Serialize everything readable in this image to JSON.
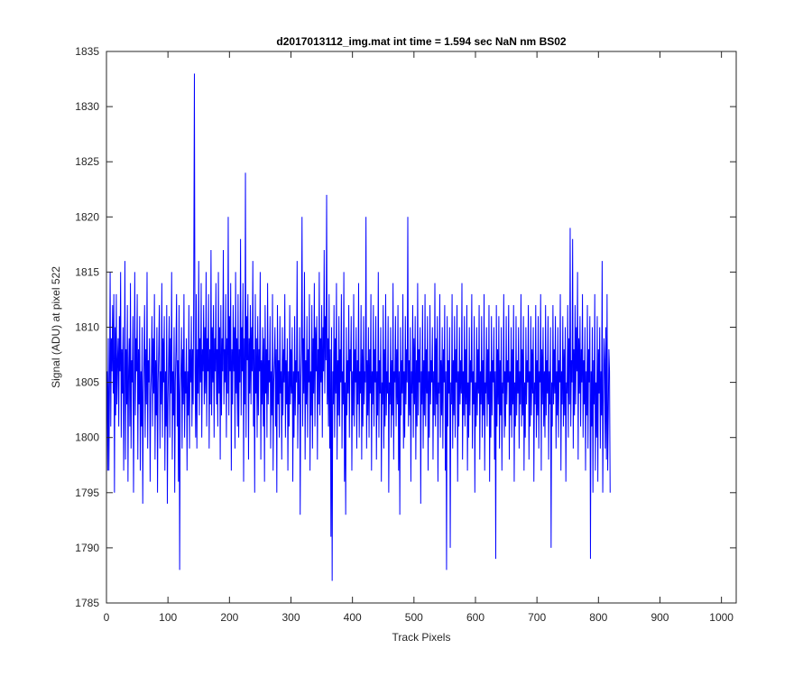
{
  "chart_data": {
    "type": "line",
    "title": "d2017013112_img.mat int time = 1.594 sec  NaN nm BS02",
    "xlabel": "Track Pixels",
    "ylabel": "Signal (ADU) at pixel 522",
    "xlim": [
      0,
      1024
    ],
    "ylim": [
      1785,
      1835
    ],
    "xticks": [
      0,
      100,
      200,
      300,
      400,
      500,
      600,
      700,
      800,
      900,
      1000
    ],
    "yticks": [
      1785,
      1790,
      1795,
      1800,
      1805,
      1810,
      1815,
      1820,
      1825,
      1830,
      1835
    ],
    "grid": false,
    "legend": "none",
    "line_color": "#0000ff",
    "series": [
      {
        "x_start": 1,
        "x_step": 1,
        "values": [
          1806,
          1797,
          1809,
          1797,
          1805,
          1815,
          1801,
          1809,
          1806,
          1812,
          1804,
          1813,
          1795,
          1810,
          1802,
          1813,
          1803,
          1807,
          1809,
          1801,
          1811,
          1806,
          1815,
          1800,
          1808,
          1804,
          1810,
          1797,
          1805,
          1816,
          1798,
          1808,
          1803,
          1812,
          1796,
          1806,
          1809,
          1801,
          1814,
          1799,
          1807,
          1805,
          1811,
          1795,
          1804,
          1815,
          1802,
          1809,
          1806,
          1813,
          1798,
          1808,
          1803,
          1811,
          1797,
          1806,
          1801,
          1810,
          1794,
          1804,
          1807,
          1812,
          1800,
          1808,
          1803,
          1815,
          1799,
          1807,
          1805,
          1809,
          1796,
          1804,
          1806,
          1811,
          1801,
          1809,
          1804,
          1813,
          1798,
          1807,
          1802,
          1810,
          1795,
          1805,
          1808,
          1812,
          1799,
          1806,
          1803,
          1814,
          1800,
          1809,
          1805,
          1811,
          1797,
          1806,
          1801,
          1812,
          1794,
          1803,
          1807,
          1811,
          1800,
          1809,
          1804,
          1815,
          1798,
          1806,
          1802,
          1810,
          1795,
          1805,
          1808,
          1813,
          1801,
          1807,
          1796,
          1812,
          1788,
          1804,
          1806,
          1810,
          1799,
          1808,
          1803,
          1813,
          1800,
          1806,
          1804,
          1809,
          1797,
          1806,
          1802,
          1812,
          1799,
          1808,
          1805,
          1811,
          1801,
          1808,
          1803,
          1815,
          1833,
          1806,
          1800,
          1813,
          1799,
          1808,
          1804,
          1816,
          1802,
          1809,
          1805,
          1814,
          1800,
          1808,
          1806,
          1812,
          1803,
          1810,
          1804,
          1815,
          1801,
          1809,
          1806,
          1813,
          1799,
          1808,
          1803,
          1817,
          1802,
          1810,
          1805,
          1812,
          1800,
          1809,
          1806,
          1814,
          1803,
          1808,
          1801,
          1815,
          1804,
          1810,
          1798,
          1812,
          1802,
          1809,
          1806,
          1817,
          1803,
          1808,
          1805,
          1813,
          1800,
          1809,
          1804,
          1820,
          1802,
          1811,
          1806,
          1814,
          1797,
          1808,
          1803,
          1812,
          1806,
          1810,
          1799,
          1815,
          1804,
          1809,
          1801,
          1813,
          1800,
          1808,
          1805,
          1818,
          1802,
          1810,
          1806,
          1814,
          1796,
          1809,
          1803,
          1824,
          1800,
          1811,
          1807,
          1813,
          1798,
          1809,
          1804,
          1812,
          1803,
          1810,
          1806,
          1816,
          1801,
          1808,
          1795,
          1813,
          1804,
          1809,
          1800,
          1811,
          1802,
          1808,
          1806,
          1815,
          1798,
          1807,
          1803,
          1810,
          1801,
          1809,
          1796,
          1812,
          1804,
          1808,
          1800,
          1814,
          1803,
          1807,
          1805,
          1811,
          1799,
          1806,
          1802,
          1813,
          1797,
          1805,
          1807,
          1810,
          1801,
          1808,
          1795,
          1812,
          1803,
          1807,
          1800,
          1811,
          1804,
          1806,
          1798,
          1810,
          1802,
          1808,
          1805,
          1813,
          1800,
          1807,
          1803,
          1809,
          1797,
          1806,
          1801,
          1812,
          1803,
          1808,
          1804,
          1810,
          1796,
          1806,
          1800,
          1811,
          1802,
          1807,
          1805,
          1816,
          1799,
          1806,
          1803,
          1810,
          1793,
          1805,
          1808,
          1820,
          1801,
          1809,
          1804,
          1815,
          1798,
          1807,
          1803,
          1811,
          1800,
          1808,
          1805,
          1813,
          1797,
          1806,
          1802,
          1812,
          1799,
          1809,
          1804,
          1814,
          1801,
          1810,
          1806,
          1811,
          1798,
          1808,
          1803,
          1815,
          1802,
          1809,
          1805,
          1812,
          1800,
          1810,
          1806,
          1817,
          1804,
          1811,
          1807,
          1822,
          1803,
          1809,
          1801,
          1813,
          1799,
          1808,
          1791,
          1810,
          1787,
          1806,
          1803,
          1812,
          1800,
          1809,
          1804,
          1814,
          1798,
          1807,
          1802,
          1811,
          1801,
          1808,
          1805,
          1813,
          1799,
          1806,
          1803,
          1815,
          1796,
          1805,
          1793,
          1810,
          1802,
          1807,
          1804,
          1812,
          1800,
          1808,
          1806,
          1811,
          1797,
          1806,
          1802,
          1813,
          1801,
          1808,
          1805,
          1810,
          1799,
          1807,
          1803,
          1814,
          1800,
          1806,
          1804,
          1812,
          1798,
          1808,
          1801,
          1811,
          1803,
          1806,
          1805,
          1820,
          1799,
          1807,
          1802,
          1810,
          1800,
          1808,
          1804,
          1813,
          1797,
          1806,
          1803,
          1812,
          1801,
          1808,
          1805,
          1811,
          1798,
          1806,
          1802,
          1815,
          1800,
          1807,
          1804,
          1810,
          1796,
          1805,
          1803,
          1812,
          1799,
          1808,
          1801,
          1813,
          1802,
          1806,
          1804,
          1811,
          1795,
          1805,
          1803,
          1810,
          1800,
          1807,
          1802,
          1814,
          1798,
          1806,
          1805,
          1811,
          1801,
          1808,
          1803,
          1812,
          1797,
          1806,
          1793,
          1810,
          1802,
          1807,
          1804,
          1813,
          1799,
          1806,
          1800,
          1811,
          1803,
          1808,
          1805,
          1820,
          1801,
          1807,
          1802,
          1810,
          1796,
          1806,
          1804,
          1812,
          1800,
          1809,
          1803,
          1811,
          1798,
          1807,
          1801,
          1814,
          1802,
          1808,
          1805,
          1810,
          1794,
          1806,
          1803,
          1812,
          1799,
          1807,
          1802,
          1813,
          1801,
          1808,
          1804,
          1811,
          1797,
          1806,
          1800,
          1812,
          1803,
          1807,
          1805,
          1810,
          1798,
          1806,
          1802,
          1814,
          1801,
          1809,
          1803,
          1811,
          1796,
          1805,
          1804,
          1813,
          1800,
          1807,
          1802,
          1810,
          1799,
          1808,
          1805,
          1812,
          1797,
          1806,
          1788,
          1811,
          1801,
          1807,
          1804,
          1810,
          1790,
          1805,
          1803,
          1813,
          1799,
          1807,
          1802,
          1811,
          1800,
          1808,
          1805,
          1812,
          1796,
          1806,
          1801,
          1810,
          1803,
          1807,
          1804,
          1814,
          1798,
          1806,
          1802,
          1811,
          1801,
          1808,
          1803,
          1812,
          1797,
          1805,
          1800,
          1810,
          1802,
          1807,
          1805,
          1813,
          1799,
          1806,
          1803,
          1811,
          1795,
          1805,
          1801,
          1810,
          1802,
          1808,
          1804,
          1812,
          1798,
          1806,
          1803,
          1811,
          1800,
          1807,
          1802,
          1813,
          1797,
          1805,
          1804,
          1810,
          1801,
          1808,
          1803,
          1812,
          1796,
          1806,
          1800,
          1811,
          1802,
          1807,
          1805,
          1810,
          1798,
          1806,
          1789,
          1812,
          1801,
          1808,
          1803,
          1811,
          1799,
          1807,
          1802,
          1810,
          1797,
          1805,
          1804,
          1813,
          1800,
          1806,
          1801,
          1811,
          1803,
          1807,
          1805,
          1812,
          1798,
          1806,
          1802,
          1810,
          1800,
          1808,
          1803,
          1812,
          1796,
          1805,
          1801,
          1811,
          1802,
          1807,
          1804,
          1810,
          1799,
          1806,
          1803,
          1813,
          1801,
          1808,
          1802,
          1811,
          1797,
          1805,
          1800,
          1810,
          1803,
          1807,
          1805,
          1812,
          1798,
          1806,
          1801,
          1811,
          1802,
          1808,
          1804,
          1810,
          1796,
          1805,
          1803,
          1812,
          1800,
          1807,
          1802,
          1811,
          1799,
          1806,
          1805,
          1813,
          1797,
          1808,
          1803,
          1810,
          1801,
          1806,
          1800,
          1812,
          1802,
          1807,
          1804,
          1811,
          1798,
          1806,
          1803,
          1810,
          1790,
          1805,
          1801,
          1812,
          1803,
          1808,
          1804,
          1811,
          1799,
          1806,
          1802,
          1810,
          1800,
          1807,
          1805,
          1813,
          1797,
          1806,
          1803,
          1811,
          1801,
          1808,
          1802,
          1810,
          1796,
          1805,
          1804,
          1812,
          1800,
          1809,
          1803,
          1819,
          1801,
          1807,
          1805,
          1818,
          1799,
          1808,
          1802,
          1812,
          1803,
          1810,
          1806,
          1815,
          1798,
          1809,
          1804,
          1811,
          1801,
          1808,
          1805,
          1813,
          1800,
          1807,
          1803,
          1810,
          1797,
          1806,
          1802,
          1812,
          1799,
          1808,
          1805,
          1811,
          1789,
          1806,
          1801,
          1810,
          1795,
          1807,
          1803,
          1813,
          1797,
          1805,
          1800,
          1811,
          1796,
          1808,
          1804,
          1810,
          1799,
          1806,
          1802,
          1816,
          1795,
          1803,
          1809,
          1807,
          1799,
          1810,
          1798,
          1813,
          1797,
          1802,
          1808,
          1806,
          1795
        ]
      }
    ]
  }
}
